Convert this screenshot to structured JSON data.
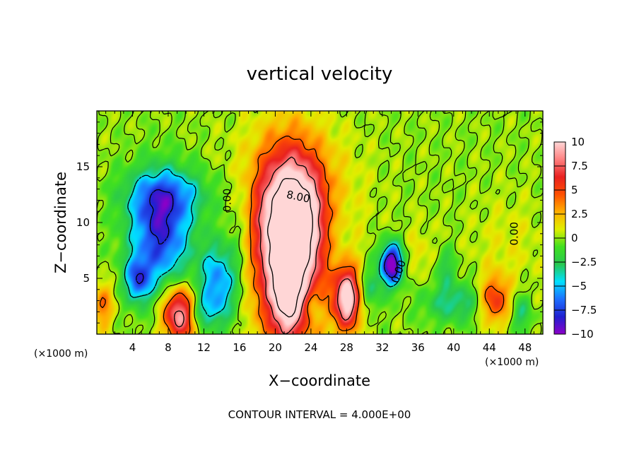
{
  "chart_data": {
    "type": "heatmap",
    "title": "vertical velocity",
    "xlabel": "X−coordinate",
    "ylabel": "Z−coordinate",
    "x_unit_left": "(×1000 m)",
    "x_unit_right": "(×1000 m)",
    "footer": "CONTOUR INTERVAL = 4.000E+00",
    "xlim": [
      0,
      50
    ],
    "ylim": [
      0,
      20
    ],
    "x_ticks": [
      4,
      8,
      12,
      16,
      20,
      24,
      28,
      32,
      36,
      40,
      44,
      48
    ],
    "x_tick_labels": [
      "4",
      "8",
      "12",
      "16",
      "20",
      "24",
      "28",
      "32",
      "36",
      "40",
      "44",
      "48"
    ],
    "y_ticks": [
      5,
      10,
      15
    ],
    "y_tick_labels": [
      "5",
      "10",
      "15"
    ],
    "colorbar": {
      "range": [
        -10,
        10
      ],
      "ticks": [
        10,
        7.5,
        5,
        2.5,
        0,
        -2.5,
        -5,
        -7.5,
        -10
      ],
      "tick_labels": [
        "10",
        "7.5",
        "5",
        "2.5",
        "0",
        "−2.5",
        "−5",
        "−7.5",
        "−10"
      ],
      "colors": [
        "#8c00c8",
        "#2020d0",
        "#1e6fff",
        "#00e0ff",
        "#28c850",
        "#40e020",
        "#e0ee00",
        "#ffb000",
        "#ff5000",
        "#e82020",
        "#ff8080",
        "#ffd6d6"
      ]
    },
    "contour_interval": 4,
    "contour_labels": [
      {
        "text": "8.00",
        "x": 22.5,
        "y": 12.0,
        "angle": 12
      },
      {
        "text": "0.00",
        "x": 15.0,
        "y": 12.0,
        "angle": -90
      },
      {
        "text": "0.00",
        "x": 34.2,
        "y": 5.5,
        "angle": -70
      },
      {
        "text": "0.00",
        "x": 47.2,
        "y": 9.0,
        "angle": -90
      }
    ],
    "cells": [
      {
        "x": 21.5,
        "y": 7.5,
        "sx": 2.6,
        "sy": 5.5,
        "amp": 14
      },
      {
        "x": 22.2,
        "y": 10.5,
        "sx": 2.0,
        "sy": 3.0,
        "amp": 4
      },
      {
        "x": 21.2,
        "y": 3.0,
        "sx": 1.0,
        "sy": 2.2,
        "amp": 5
      },
      {
        "x": 22.0,
        "y": 12.5,
        "sx": 4.5,
        "sy": 4.0,
        "amp": 3
      },
      {
        "x": 7.0,
        "y": 9.0,
        "sx": 2.4,
        "sy": 3.4,
        "amp": -8
      },
      {
        "x": 4.5,
        "y": 4.8,
        "sx": 1.0,
        "sy": 1.4,
        "amp": -6
      },
      {
        "x": 8.0,
        "y": 12.5,
        "sx": 3.5,
        "sy": 1.6,
        "amp": -4
      },
      {
        "x": 13.5,
        "y": 4.5,
        "sx": 1.5,
        "sy": 2.6,
        "amp": -6
      },
      {
        "x": 11.5,
        "y": 2.0,
        "sx": 1.2,
        "sy": 1.0,
        "amp": -3
      },
      {
        "x": 33.0,
        "y": 6.2,
        "sx": 0.9,
        "sy": 1.3,
        "amp": -11
      },
      {
        "x": 30.5,
        "y": 4.0,
        "sx": 1.0,
        "sy": 1.4,
        "amp": -3
      },
      {
        "x": 24.2,
        "y": 2.5,
        "sx": 0.7,
        "sy": 1.2,
        "amp": -3
      },
      {
        "x": 9.2,
        "y": 1.8,
        "sx": 1.3,
        "sy": 1.7,
        "amp": 10
      },
      {
        "x": 28.0,
        "y": 3.2,
        "sx": 1.1,
        "sy": 2.0,
        "amp": 11
      },
      {
        "x": 44.5,
        "y": 3.0,
        "sx": 1.2,
        "sy": 1.5,
        "amp": 6
      },
      {
        "x": 0.6,
        "y": 2.5,
        "sx": 0.8,
        "sy": 1.5,
        "amp": 4
      },
      {
        "x": 40.0,
        "y": 2.8,
        "sx": 2.5,
        "sy": 1.3,
        "amp": -3.5
      },
      {
        "x": 39.0,
        "y": 6.0,
        "sx": 0.8,
        "sy": 1.2,
        "amp": -2.5
      },
      {
        "x": 47.5,
        "y": 1.8,
        "sx": 0.8,
        "sy": 1.2,
        "amp": -3
      },
      {
        "x": 16.0,
        "y": 9.0,
        "sx": 1.2,
        "sy": 3.5,
        "amp": -1.5
      },
      {
        "x": 26.5,
        "y": 8.5,
        "sx": 1.2,
        "sy": 3.0,
        "amp": -1.2
      },
      {
        "x": 36.0,
        "y": 7.0,
        "sx": 1.5,
        "sy": 2.0,
        "amp": 1.2
      },
      {
        "x": 46.0,
        "y": 8.0,
        "sx": 3.0,
        "sy": 3.0,
        "amp": 1.0
      }
    ]
  }
}
